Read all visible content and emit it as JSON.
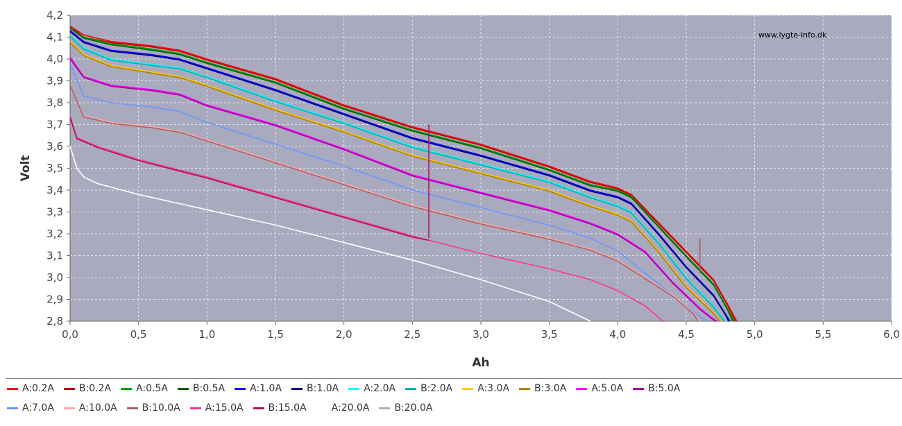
{
  "chart_data": {
    "type": "line",
    "watermark": "www.lygte-info.dk",
    "xlabel": "Ah",
    "ylabel": "Volt",
    "xlim": [
      0.0,
      6.0
    ],
    "ylim": [
      2.8,
      4.2
    ],
    "xticks": [
      "0,0",
      "0,5",
      "1,0",
      "1,5",
      "2,0",
      "2,5",
      "3,0",
      "3,5",
      "4,0",
      "4,5",
      "5,0",
      "5,5",
      "6,0"
    ],
    "yticks": [
      "2,8",
      "2,9",
      "3,0",
      "3,1",
      "3,2",
      "3,3",
      "3,4",
      "3,5",
      "3,6",
      "3,7",
      "3,8",
      "3,9",
      "4,0",
      "4,1",
      "4,2"
    ],
    "grid": true,
    "legend_position": "bottom",
    "series": [
      {
        "name": "A:0.2A",
        "color": "#ff0000",
        "x": [
          0,
          0.1,
          0.3,
          0.6,
          0.8,
          1.0,
          1.5,
          2.0,
          2.5,
          3.0,
          3.5,
          3.8,
          4.0,
          4.1,
          4.3,
          4.5,
          4.7,
          4.8,
          4.87
        ],
        "y": [
          4.15,
          4.11,
          4.08,
          4.06,
          4.04,
          4.0,
          3.91,
          3.79,
          3.69,
          3.61,
          3.51,
          3.44,
          3.41,
          3.38,
          3.25,
          3.12,
          2.99,
          2.88,
          2.8
        ]
      },
      {
        "name": "B:0.2A",
        "color": "#c00000",
        "x": [
          0,
          0.1,
          0.3,
          0.6,
          0.8,
          1.0,
          1.5,
          2.0,
          2.5,
          3.0,
          3.5,
          3.8,
          4.0,
          4.1,
          4.3,
          4.5,
          4.7,
          4.8,
          4.86
        ],
        "y": [
          4.15,
          4.1,
          4.075,
          4.055,
          4.035,
          3.995,
          3.905,
          3.785,
          3.685,
          3.605,
          3.505,
          3.435,
          3.405,
          3.375,
          3.245,
          3.115,
          2.985,
          2.875,
          2.8
        ]
      },
      {
        "name": "A:0.5A",
        "color": "#00a000",
        "x": [
          0,
          0.1,
          0.3,
          0.6,
          0.8,
          1.0,
          1.5,
          2.0,
          2.5,
          3.0,
          3.5,
          3.8,
          4.0,
          4.1,
          4.3,
          4.5,
          4.7,
          4.8,
          4.85
        ],
        "y": [
          4.14,
          4.1,
          4.07,
          4.045,
          4.025,
          3.985,
          3.895,
          3.775,
          3.675,
          3.595,
          3.495,
          3.425,
          3.4,
          3.37,
          3.235,
          3.1,
          2.97,
          2.86,
          2.8
        ]
      },
      {
        "name": "B:0.5A",
        "color": "#006000",
        "x": [
          0,
          0.1,
          0.3,
          0.6,
          0.8,
          1.0,
          1.5,
          2.0,
          2.5,
          3.0,
          3.5,
          3.8,
          4.0,
          4.1,
          4.3,
          4.5,
          4.7,
          4.8,
          4.84
        ],
        "y": [
          4.14,
          4.095,
          4.065,
          4.04,
          4.02,
          3.98,
          3.89,
          3.77,
          3.67,
          3.59,
          3.49,
          3.42,
          3.395,
          3.365,
          3.23,
          3.095,
          2.965,
          2.855,
          2.8
        ]
      },
      {
        "name": "A:1.0A",
        "color": "#0000ff",
        "x": [
          0,
          0.1,
          0.3,
          0.6,
          0.8,
          1.0,
          1.5,
          2.0,
          2.5,
          3.0,
          3.5,
          3.8,
          4.0,
          4.1,
          4.3,
          4.5,
          4.7,
          4.78,
          4.82
        ],
        "y": [
          4.13,
          4.08,
          4.04,
          4.02,
          4.0,
          3.96,
          3.86,
          3.75,
          3.64,
          3.56,
          3.47,
          3.4,
          3.37,
          3.34,
          3.2,
          3.05,
          2.92,
          2.84,
          2.8
        ]
      },
      {
        "name": "B:1.0A",
        "color": "#000080",
        "x": [
          0,
          0.1,
          0.3,
          0.6,
          0.8,
          1.0,
          1.5,
          2.0,
          2.5,
          3.0,
          3.5,
          3.8,
          4.0,
          4.1,
          4.3,
          4.5,
          4.7,
          4.78,
          4.81
        ],
        "y": [
          4.125,
          4.075,
          4.035,
          4.015,
          3.995,
          3.955,
          3.855,
          3.745,
          3.635,
          3.555,
          3.465,
          3.395,
          3.365,
          3.335,
          3.195,
          3.045,
          2.915,
          2.835,
          2.8
        ]
      },
      {
        "name": "A:2.0A",
        "color": "#00ffff",
        "x": [
          0,
          0.1,
          0.3,
          0.6,
          0.8,
          1.0,
          1.5,
          2.0,
          2.5,
          3.0,
          3.5,
          3.8,
          4.0,
          4.1,
          4.3,
          4.5,
          4.7,
          4.76,
          4.79
        ],
        "y": [
          4.11,
          4.05,
          4.0,
          3.975,
          3.96,
          3.92,
          3.81,
          3.71,
          3.6,
          3.52,
          3.44,
          3.37,
          3.33,
          3.3,
          3.16,
          3.0,
          2.87,
          2.82,
          2.8
        ]
      },
      {
        "name": "B:2.0A",
        "color": "#00b0b0",
        "x": [
          0,
          0.1,
          0.3,
          0.6,
          0.8,
          1.0,
          1.5,
          2.0,
          2.5,
          3.0,
          3.5,
          3.8,
          4.0,
          4.1,
          4.3,
          4.5,
          4.7,
          4.76,
          4.78
        ],
        "y": [
          4.105,
          4.045,
          3.995,
          3.97,
          3.955,
          3.915,
          3.805,
          3.705,
          3.595,
          3.515,
          3.435,
          3.365,
          3.325,
          3.295,
          3.155,
          2.995,
          2.865,
          2.815,
          2.8
        ]
      },
      {
        "name": "A:3.0A",
        "color": "#ffcc00",
        "x": [
          0,
          0.1,
          0.3,
          0.6,
          0.8,
          1.0,
          1.5,
          2.0,
          2.5,
          3.0,
          3.5,
          3.8,
          4.0,
          4.1,
          4.3,
          4.5,
          4.7,
          4.74,
          4.76
        ],
        "y": [
          4.08,
          4.02,
          3.97,
          3.94,
          3.92,
          3.88,
          3.77,
          3.67,
          3.56,
          3.48,
          3.4,
          3.33,
          3.29,
          3.26,
          3.12,
          2.96,
          2.84,
          2.81,
          2.8
        ]
      },
      {
        "name": "B:3.0A",
        "color": "#b08000",
        "x": [
          0,
          0.1,
          0.3,
          0.6,
          0.8,
          1.0,
          1.5,
          2.0,
          2.5,
          3.0,
          3.5,
          3.8,
          4.0,
          4.1,
          4.3,
          4.5,
          4.7,
          4.74,
          4.75
        ],
        "y": [
          4.075,
          4.015,
          3.965,
          3.935,
          3.915,
          3.875,
          3.765,
          3.665,
          3.555,
          3.475,
          3.395,
          3.325,
          3.285,
          3.255,
          3.115,
          2.955,
          2.835,
          2.805,
          2.8
        ]
      },
      {
        "name": "A:5.0A",
        "color": "#ff00ff",
        "x": [
          0,
          0.1,
          0.3,
          0.6,
          0.8,
          1.0,
          1.5,
          2.0,
          2.5,
          3.0,
          3.5,
          3.8,
          4.0,
          4.2,
          4.4,
          4.6,
          4.7,
          4.73
        ],
        "y": [
          4.01,
          3.92,
          3.88,
          3.86,
          3.84,
          3.79,
          3.7,
          3.59,
          3.47,
          3.39,
          3.31,
          3.25,
          3.2,
          3.12,
          2.98,
          2.86,
          2.81,
          2.8
        ]
      },
      {
        "name": "B:5.0A",
        "color": "#a000a0",
        "x": [
          0,
          0.1,
          0.3,
          0.6,
          0.8,
          1.0,
          1.5,
          2.0,
          2.5,
          3.0,
          3.5,
          3.8,
          4.0,
          4.2,
          4.4,
          4.6,
          4.7,
          4.72
        ],
        "y": [
          4.0,
          3.915,
          3.875,
          3.855,
          3.835,
          3.785,
          3.695,
          3.585,
          3.465,
          3.385,
          3.305,
          3.245,
          3.195,
          3.115,
          2.975,
          2.855,
          2.805,
          2.8
        ]
      },
      {
        "name": "A:7.0A",
        "color": "#6699ff",
        "x": [
          0,
          0.1,
          0.3,
          0.6,
          0.8,
          1.0,
          1.5,
          2.0,
          2.5,
          3.0,
          3.5,
          3.8,
          4.0,
          4.2,
          4.4,
          4.6,
          4.66
        ],
        "y": [
          3.98,
          3.83,
          3.8,
          3.78,
          3.76,
          3.71,
          3.61,
          3.51,
          3.4,
          3.32,
          3.24,
          3.18,
          3.12,
          3.02,
          2.92,
          2.82,
          2.8
        ]
      },
      {
        "name": "A:10.0A",
        "color": "#ffaaaa",
        "x": [
          0,
          0.1,
          0.3,
          0.6,
          0.8,
          1.0,
          1.5,
          2.0,
          2.5,
          3.0,
          3.5,
          3.8,
          4.0,
          4.2,
          4.4,
          4.55,
          4.6
        ],
        "y": [
          3.88,
          3.74,
          3.71,
          3.69,
          3.67,
          3.63,
          3.53,
          3.43,
          3.33,
          3.25,
          3.18,
          3.13,
          3.08,
          3.0,
          2.92,
          2.84,
          2.8
        ]
      },
      {
        "name": "B:10.0A",
        "color": "#aa6060",
        "x": [
          0,
          0.1,
          0.3,
          0.6,
          0.8,
          1.0,
          1.5,
          2.0,
          2.5,
          3.0,
          3.5,
          3.8,
          4.0,
          4.2,
          4.4,
          4.55,
          4.59
        ],
        "y": [
          3.88,
          3.735,
          3.705,
          3.685,
          3.665,
          3.625,
          3.525,
          3.425,
          3.325,
          3.245,
          3.175,
          3.125,
          3.075,
          2.995,
          2.915,
          2.835,
          2.8
        ]
      },
      {
        "name": "A:15.0A",
        "color": "#ff3399",
        "x": [
          0,
          0.05,
          0.2,
          0.5,
          1.0,
          1.5,
          2.0,
          2.5,
          3.0,
          3.5,
          3.8,
          4.0,
          4.2,
          4.33
        ],
        "y": [
          3.74,
          3.64,
          3.6,
          3.54,
          3.46,
          3.37,
          3.28,
          3.19,
          3.11,
          3.04,
          2.99,
          2.94,
          2.87,
          2.8
        ]
      },
      {
        "name": "B:15.0A",
        "color": "#b01060",
        "x": [
          0,
          0.05,
          0.2,
          0.5,
          1.0,
          1.5,
          2.0,
          2.5,
          2.62
        ],
        "y": [
          3.73,
          3.635,
          3.595,
          3.535,
          3.455,
          3.365,
          3.275,
          3.185,
          3.17
        ]
      },
      {
        "name": "A:20.0A",
        "color": "#ffffff",
        "x": [
          0,
          0.05,
          0.1,
          0.2,
          0.5,
          1.0,
          1.5,
          2.0,
          2.5,
          3.0,
          3.5,
          3.8
        ],
        "y": [
          3.6,
          3.5,
          3.46,
          3.43,
          3.38,
          3.31,
          3.24,
          3.16,
          3.08,
          2.99,
          2.89,
          2.8
        ]
      },
      {
        "name": "B:20.0A",
        "color": "#b0b0b0",
        "x": [],
        "y": []
      }
    ],
    "annotations": [
      {
        "x": 2.62,
        "y_from": 3.18,
        "y_to": 3.7,
        "color": "#b01060"
      },
      {
        "x": 4.6,
        "y_from": 3.02,
        "y_to": 3.18,
        "color": "#aa6060"
      }
    ]
  }
}
